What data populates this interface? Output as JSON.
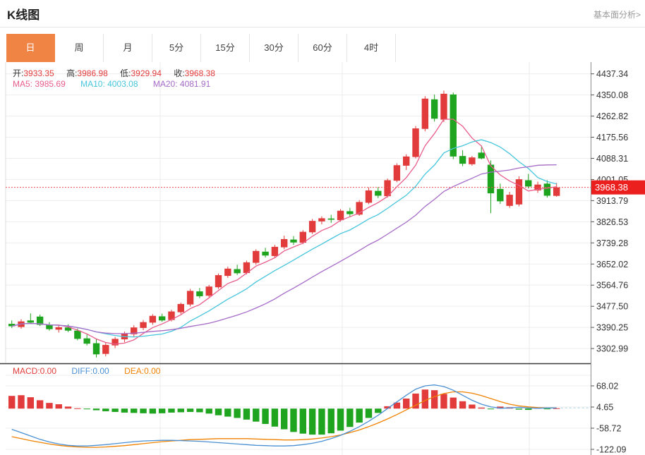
{
  "header": {
    "title": "K线图",
    "link": "基本面分析>"
  },
  "tabs": {
    "items": [
      "日",
      "周",
      "月",
      "5分",
      "15分",
      "30分",
      "60分",
      "4时"
    ],
    "selected": "日"
  },
  "info": {
    "open_label": "开:",
    "open": "3933.35",
    "high_label": "高:",
    "high": "3986.98",
    "low_label": "低:",
    "low": "3929.94",
    "close_label": "收:",
    "close": "3968.38"
  },
  "ma": {
    "ma5_label": "MA5:",
    "ma5": "3985.69",
    "ma10_label": "MA10:",
    "ma10": "4003.08",
    "ma20_label": "MA20:",
    "ma20": "4081.91"
  },
  "macd_info": {
    "macd_label": "MACD:",
    "macd": "0.00",
    "diff_label": "DIFF:",
    "diff": "0.00",
    "dea_label": "DEA:",
    "dea": "0.00"
  },
  "colors": {
    "up": "#e23b3b",
    "down": "#1fa41f",
    "badge_bg": "#ec1f1f",
    "price_line": "#f05252",
    "ma5": "#e85d8a",
    "ma10": "#45c5dc",
    "ma20": "#a66bc8",
    "diff": "#4a90d2",
    "dea": "#f08200",
    "tab_active_bg": "#f08445",
    "axis_text": "#333333",
    "link_text": "#999999"
  },
  "chart_data": {
    "type": "candlestick+macd",
    "title": "K线图",
    "period_selected": "日",
    "legend": [
      "MA5",
      "MA10",
      "MA20",
      "MACD",
      "DIFF",
      "DEA"
    ],
    "grid": true,
    "price_axis_ticks": [
      "4437.34",
      "4350.08",
      "4262.82",
      "4175.56",
      "4088.31",
      "4001.05",
      "3913.79",
      "3826.53",
      "3739.28",
      "3652.02",
      "3564.76",
      "3477.50",
      "3390.25",
      "3302.99"
    ],
    "price_axis_range": [
      3245,
      4480
    ],
    "current_price": 3968.38,
    "last_candle_ohlc": {
      "open": 3933.35,
      "high": 3986.98,
      "low": 3929.94,
      "close": 3968.38
    },
    "ma_values": {
      "ma5": 3985.69,
      "ma10": 4003.08,
      "ma20": 4081.91
    },
    "ma_periods": [
      5,
      10,
      20
    ],
    "candles": [
      [
        3405,
        3419,
        3388,
        3395
      ],
      [
        3392,
        3424,
        3385,
        3415
      ],
      [
        3419,
        3448,
        3406,
        3410
      ],
      [
        3435,
        3443,
        3396,
        3401
      ],
      [
        3401,
        3412,
        3377,
        3383
      ],
      [
        3381,
        3399,
        3369,
        3391
      ],
      [
        3390,
        3403,
        3371,
        3377
      ],
      [
        3377,
        3386,
        3337,
        3343
      ],
      [
        3345,
        3361,
        3316,
        3323
      ],
      [
        3325,
        3342,
        3266,
        3279
      ],
      [
        3281,
        3327,
        3271,
        3318
      ],
      [
        3316,
        3351,
        3305,
        3343
      ],
      [
        3341,
        3373,
        3329,
        3364
      ],
      [
        3362,
        3399,
        3351,
        3390
      ],
      [
        3388,
        3421,
        3379,
        3412
      ],
      [
        3410,
        3445,
        3401,
        3438
      ],
      [
        3436,
        3447,
        3413,
        3419
      ],
      [
        3421,
        3463,
        3415,
        3456
      ],
      [
        3453,
        3493,
        3445,
        3487
      ],
      [
        3485,
        3549,
        3477,
        3541
      ],
      [
        3539,
        3553,
        3511,
        3519
      ],
      [
        3521,
        3566,
        3515,
        3559
      ],
      [
        3556,
        3613,
        3549,
        3606
      ],
      [
        3603,
        3641,
        3595,
        3633
      ],
      [
        3631,
        3649,
        3607,
        3614
      ],
      [
        3615,
        3666,
        3609,
        3659
      ],
      [
        3657,
        3713,
        3649,
        3706
      ],
      [
        3703,
        3719,
        3679,
        3687
      ],
      [
        3685,
        3731,
        3677,
        3723
      ],
      [
        3721,
        3769,
        3713,
        3755
      ],
      [
        3753,
        3767,
        3731,
        3741
      ],
      [
        3740,
        3792,
        3734,
        3785
      ],
      [
        3783,
        3838,
        3776,
        3830
      ],
      [
        3828,
        3849,
        3816,
        3841
      ],
      [
        3840,
        3855,
        3822,
        3835
      ],
      [
        3833,
        3879,
        3827,
        3872
      ],
      [
        3870,
        3884,
        3848,
        3858
      ],
      [
        3856,
        3916,
        3851,
        3908
      ],
      [
        3905,
        3968,
        3899,
        3956
      ],
      [
        3954,
        3970,
        3924,
        3934
      ],
      [
        3932,
        4005,
        3926,
        3998
      ],
      [
        3996,
        4068,
        3990,
        4060
      ],
      [
        4058,
        4105,
        4040,
        4096
      ],
      [
        4094,
        4222,
        4088,
        4212
      ],
      [
        4210,
        4345,
        4200,
        4335
      ],
      [
        4332,
        4352,
        4240,
        4252
      ],
      [
        4248,
        4368,
        4238,
        4355
      ],
      [
        4352,
        4360,
        4085,
        4096
      ],
      [
        4098,
        4122,
        4056,
        4066
      ],
      [
        4064,
        4098,
        4058,
        4092
      ],
      [
        4112,
        4135,
        4084,
        4088
      ],
      [
        4062,
        4080,
        3862,
        3944
      ],
      [
        3962,
        3984,
        3900,
        3911
      ],
      [
        3892,
        3950,
        3884,
        3938
      ],
      [
        3898,
        4014,
        3890,
        4002
      ],
      [
        3998,
        4024,
        3964,
        3972
      ],
      [
        3956,
        3992,
        3946,
        3980
      ],
      [
        3984,
        3998,
        3926,
        3934
      ],
      [
        3933.35,
        3986.98,
        3929.94,
        3968.38
      ]
    ],
    "macd_axis_ticks": [
      "68.02",
      "4.65",
      "-58.72",
      "-122.09"
    ],
    "macd_values": {
      "macd": 0.0,
      "diff": 0.0,
      "dea": 0.0
    },
    "macd_hist": [
      38,
      40,
      34,
      25,
      17,
      13,
      6,
      1,
      -2,
      -5,
      -8,
      -10,
      -12,
      -13,
      -14,
      -15,
      -14,
      -12,
      -11,
      -10,
      -11,
      -15,
      -20,
      -24,
      -28,
      -33,
      -39,
      -46,
      -54,
      -62,
      -70,
      -75,
      -78,
      -78,
      -74,
      -66,
      -55,
      -42,
      -28,
      -13,
      7,
      18,
      30,
      45,
      57,
      55,
      44,
      33,
      22,
      12,
      3,
      -2,
      6,
      4,
      -3,
      -4,
      2,
      -2,
      1
    ],
    "diff_line": [
      -62,
      -72,
      -82,
      -92,
      -100,
      -106,
      -110,
      -112,
      -112,
      -110,
      -108,
      -105,
      -102,
      -99,
      -97,
      -96,
      -95,
      -95,
      -96,
      -97,
      -98,
      -100,
      -102,
      -104,
      -106,
      -108,
      -110,
      -111,
      -112,
      -112,
      -111,
      -108,
      -104,
      -98,
      -90,
      -80,
      -68,
      -54,
      -38,
      -20,
      0,
      20,
      40,
      58,
      68,
      71,
      66,
      55,
      40,
      25,
      13,
      5,
      1,
      2,
      4,
      2,
      1,
      2,
      2
    ],
    "dea_line": [
      -84,
      -90,
      -96,
      -101,
      -106,
      -110,
      -113,
      -115,
      -116,
      -116,
      -115,
      -113,
      -111,
      -108,
      -105,
      -102,
      -99,
      -97,
      -95,
      -93,
      -92,
      -91,
      -90,
      -90,
      -90,
      -90,
      -91,
      -92,
      -93,
      -94,
      -94,
      -93,
      -91,
      -88,
      -84,
      -79,
      -72,
      -64,
      -54,
      -43,
      -31,
      -18,
      -4,
      10,
      24,
      36,
      45,
      50,
      50,
      46,
      39,
      30,
      21,
      13,
      8,
      5,
      3,
      2,
      2
    ]
  }
}
